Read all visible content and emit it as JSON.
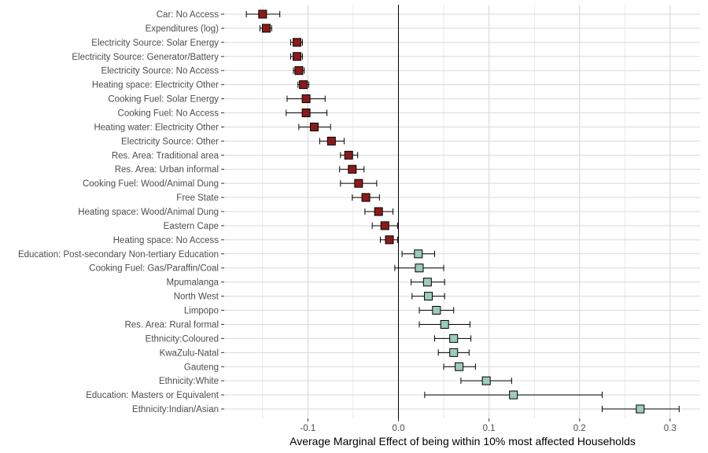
{
  "chart_data": {
    "type": "scatter",
    "subtype": "coefficient-plot-with-error-bars",
    "title": "",
    "xlabel": "Average Marginal Effect of being within 10% most affected Households",
    "ylabel": "",
    "xlim": [
      -0.19,
      0.31
    ],
    "x_ticks": [
      -0.1,
      0.0,
      0.1,
      0.2,
      0.3
    ],
    "x_tick_labels": [
      "-0.1",
      "0.0",
      "0.1",
      "0.2",
      "0.3"
    ],
    "grid": true,
    "legend": "none",
    "reference_line_x": 0,
    "colors": {
      "negative": "#8b1a1a",
      "positive": "#9ccbb8",
      "grid": "#d9d9d9",
      "zero_line": "#000000"
    },
    "points": [
      {
        "label": "Car: No Access",
        "estimate": -0.15,
        "lower": -0.168,
        "upper": -0.131
      },
      {
        "label": "Expenditures (log)",
        "estimate": -0.146,
        "lower": -0.153,
        "upper": -0.14
      },
      {
        "label": "Electricity Source: Solar Energy",
        "estimate": -0.112,
        "lower": -0.119,
        "upper": -0.106
      },
      {
        "label": "Electricity Source: Generator/Battery",
        "estimate": -0.112,
        "lower": -0.119,
        "upper": -0.106
      },
      {
        "label": "Electricity Source: No Access",
        "estimate": -0.11,
        "lower": -0.116,
        "upper": -0.104
      },
      {
        "label": "Heating space: Electricity Other",
        "estimate": -0.105,
        "lower": -0.111,
        "upper": -0.099
      },
      {
        "label": "Cooking Fuel: Solar Energy",
        "estimate": -0.102,
        "lower": -0.123,
        "upper": -0.081
      },
      {
        "label": "Cooking Fuel: No Access",
        "estimate": -0.102,
        "lower": -0.124,
        "upper": -0.079
      },
      {
        "label": "Heating water: Electricity Other",
        "estimate": -0.093,
        "lower": -0.11,
        "upper": -0.075
      },
      {
        "label": "Electricity Source: Other",
        "estimate": -0.074,
        "lower": -0.087,
        "upper": -0.06
      },
      {
        "label": "Res. Area: Traditional area",
        "estimate": -0.055,
        "lower": -0.064,
        "upper": -0.045
      },
      {
        "label": "Res. Area: Urban informal",
        "estimate": -0.051,
        "lower": -0.065,
        "upper": -0.038
      },
      {
        "label": "Cooking Fuel: Wood/Animal Dung",
        "estimate": -0.044,
        "lower": -0.064,
        "upper": -0.024
      },
      {
        "label": "Free State",
        "estimate": -0.036,
        "lower": -0.051,
        "upper": -0.021
      },
      {
        "label": "Heating space: Wood/Animal Dung",
        "estimate": -0.022,
        "lower": -0.037,
        "upper": -0.006
      },
      {
        "label": "Eastern Cape",
        "estimate": -0.015,
        "lower": -0.029,
        "upper": -0.001
      },
      {
        "label": "Heating space: No Access",
        "estimate": -0.01,
        "lower": -0.02,
        "upper": -0.001
      },
      {
        "label": "Education: Post-secondary Non-tertiary Education",
        "estimate": 0.022,
        "lower": 0.004,
        "upper": 0.04
      },
      {
        "label": "Cooking Fuel: Gas/Paraffin/Coal",
        "estimate": 0.023,
        "lower": -0.004,
        "upper": 0.05
      },
      {
        "label": "Mpumalanga",
        "estimate": 0.032,
        "lower": 0.014,
        "upper": 0.051
      },
      {
        "label": "North West",
        "estimate": 0.033,
        "lower": 0.015,
        "upper": 0.051
      },
      {
        "label": "Limpopo",
        "estimate": 0.042,
        "lower": 0.023,
        "upper": 0.061
      },
      {
        "label": "Res. Area: Rural formal",
        "estimate": 0.051,
        "lower": 0.023,
        "upper": 0.079
      },
      {
        "label": "Ethnicity:Coloured",
        "estimate": 0.061,
        "lower": 0.04,
        "upper": 0.08
      },
      {
        "label": "KwaZulu-Natal",
        "estimate": 0.061,
        "lower": 0.044,
        "upper": 0.078
      },
      {
        "label": "Gauteng",
        "estimate": 0.067,
        "lower": 0.05,
        "upper": 0.085
      },
      {
        "label": "Ethnicity:White",
        "estimate": 0.097,
        "lower": 0.069,
        "upper": 0.125
      },
      {
        "label": "Education: Masters or Equivalent",
        "estimate": 0.127,
        "lower": 0.029,
        "upper": 0.225
      },
      {
        "label": "Ethnicity:Indian/Asian",
        "estimate": 0.267,
        "lower": 0.225,
        "upper": 0.31
      }
    ]
  }
}
